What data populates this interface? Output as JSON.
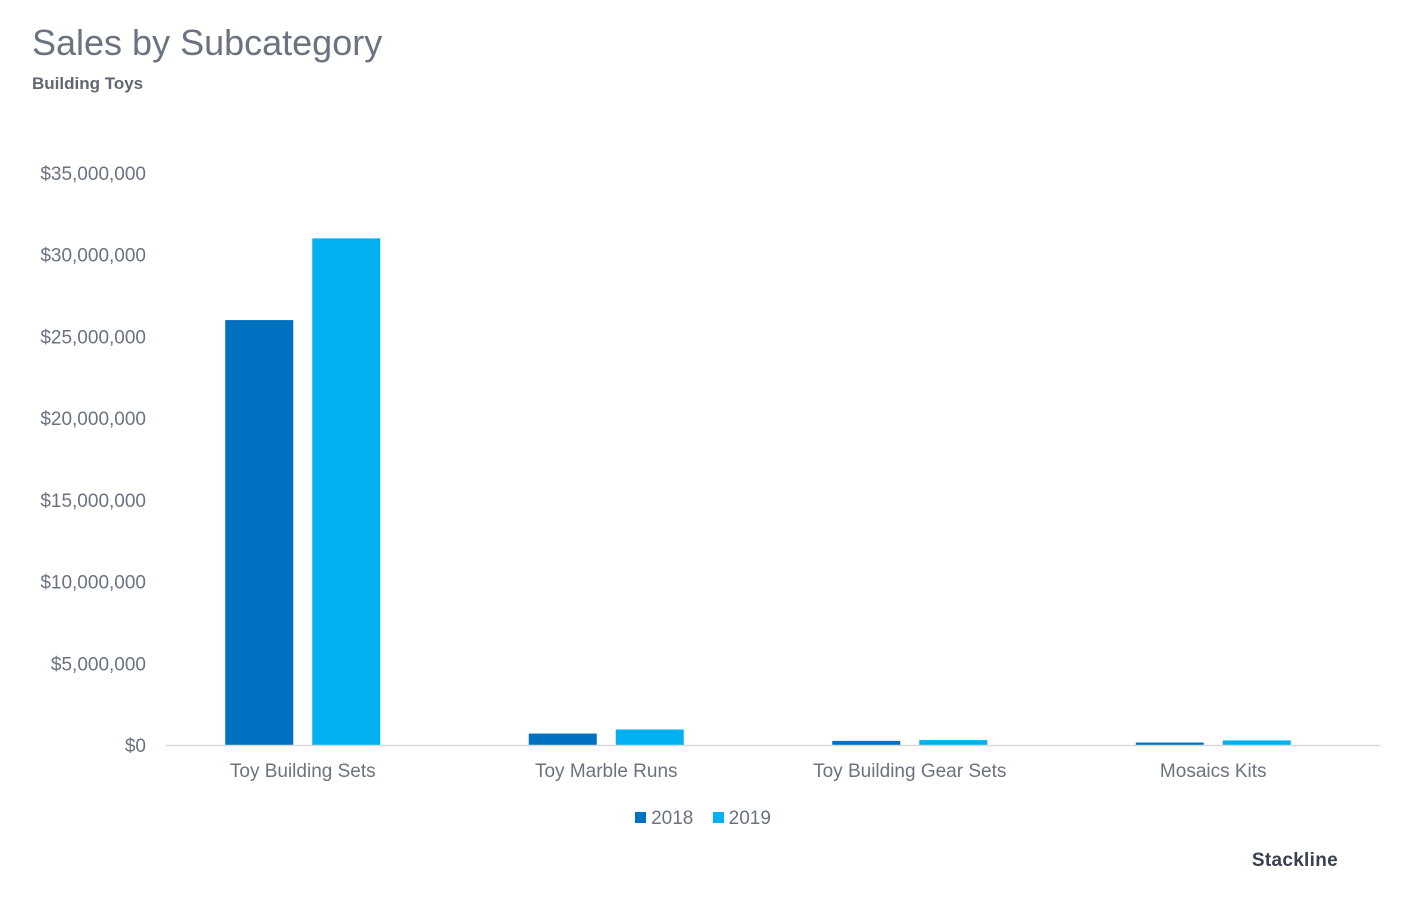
{
  "chart_data": {
    "type": "bar",
    "title": "Sales by Subcategory",
    "subtitle": "Building Toys",
    "categories": [
      "Toy Building Sets",
      "Toy Marble Runs",
      "Toy Building Gear Sets",
      "Mosaics Kits"
    ],
    "series": [
      {
        "name": "2018",
        "color": "#0070c0",
        "values": [
          26000000,
          700000,
          250000,
          150000
        ]
      },
      {
        "name": "2019",
        "color": "#00b0f0",
        "values": [
          31000000,
          950000,
          300000,
          280000
        ]
      }
    ],
    "y_ticks": [
      "$0",
      "$5,000,000",
      "$10,000,000",
      "$15,000,000",
      "$20,000,000",
      "$25,000,000",
      "$30,000,000",
      "$35,000,000"
    ],
    "ylim": [
      0,
      35000000
    ],
    "grid": false,
    "legend_position": "bottom",
    "xlabel": "",
    "ylabel": ""
  },
  "brand": "Stackline"
}
